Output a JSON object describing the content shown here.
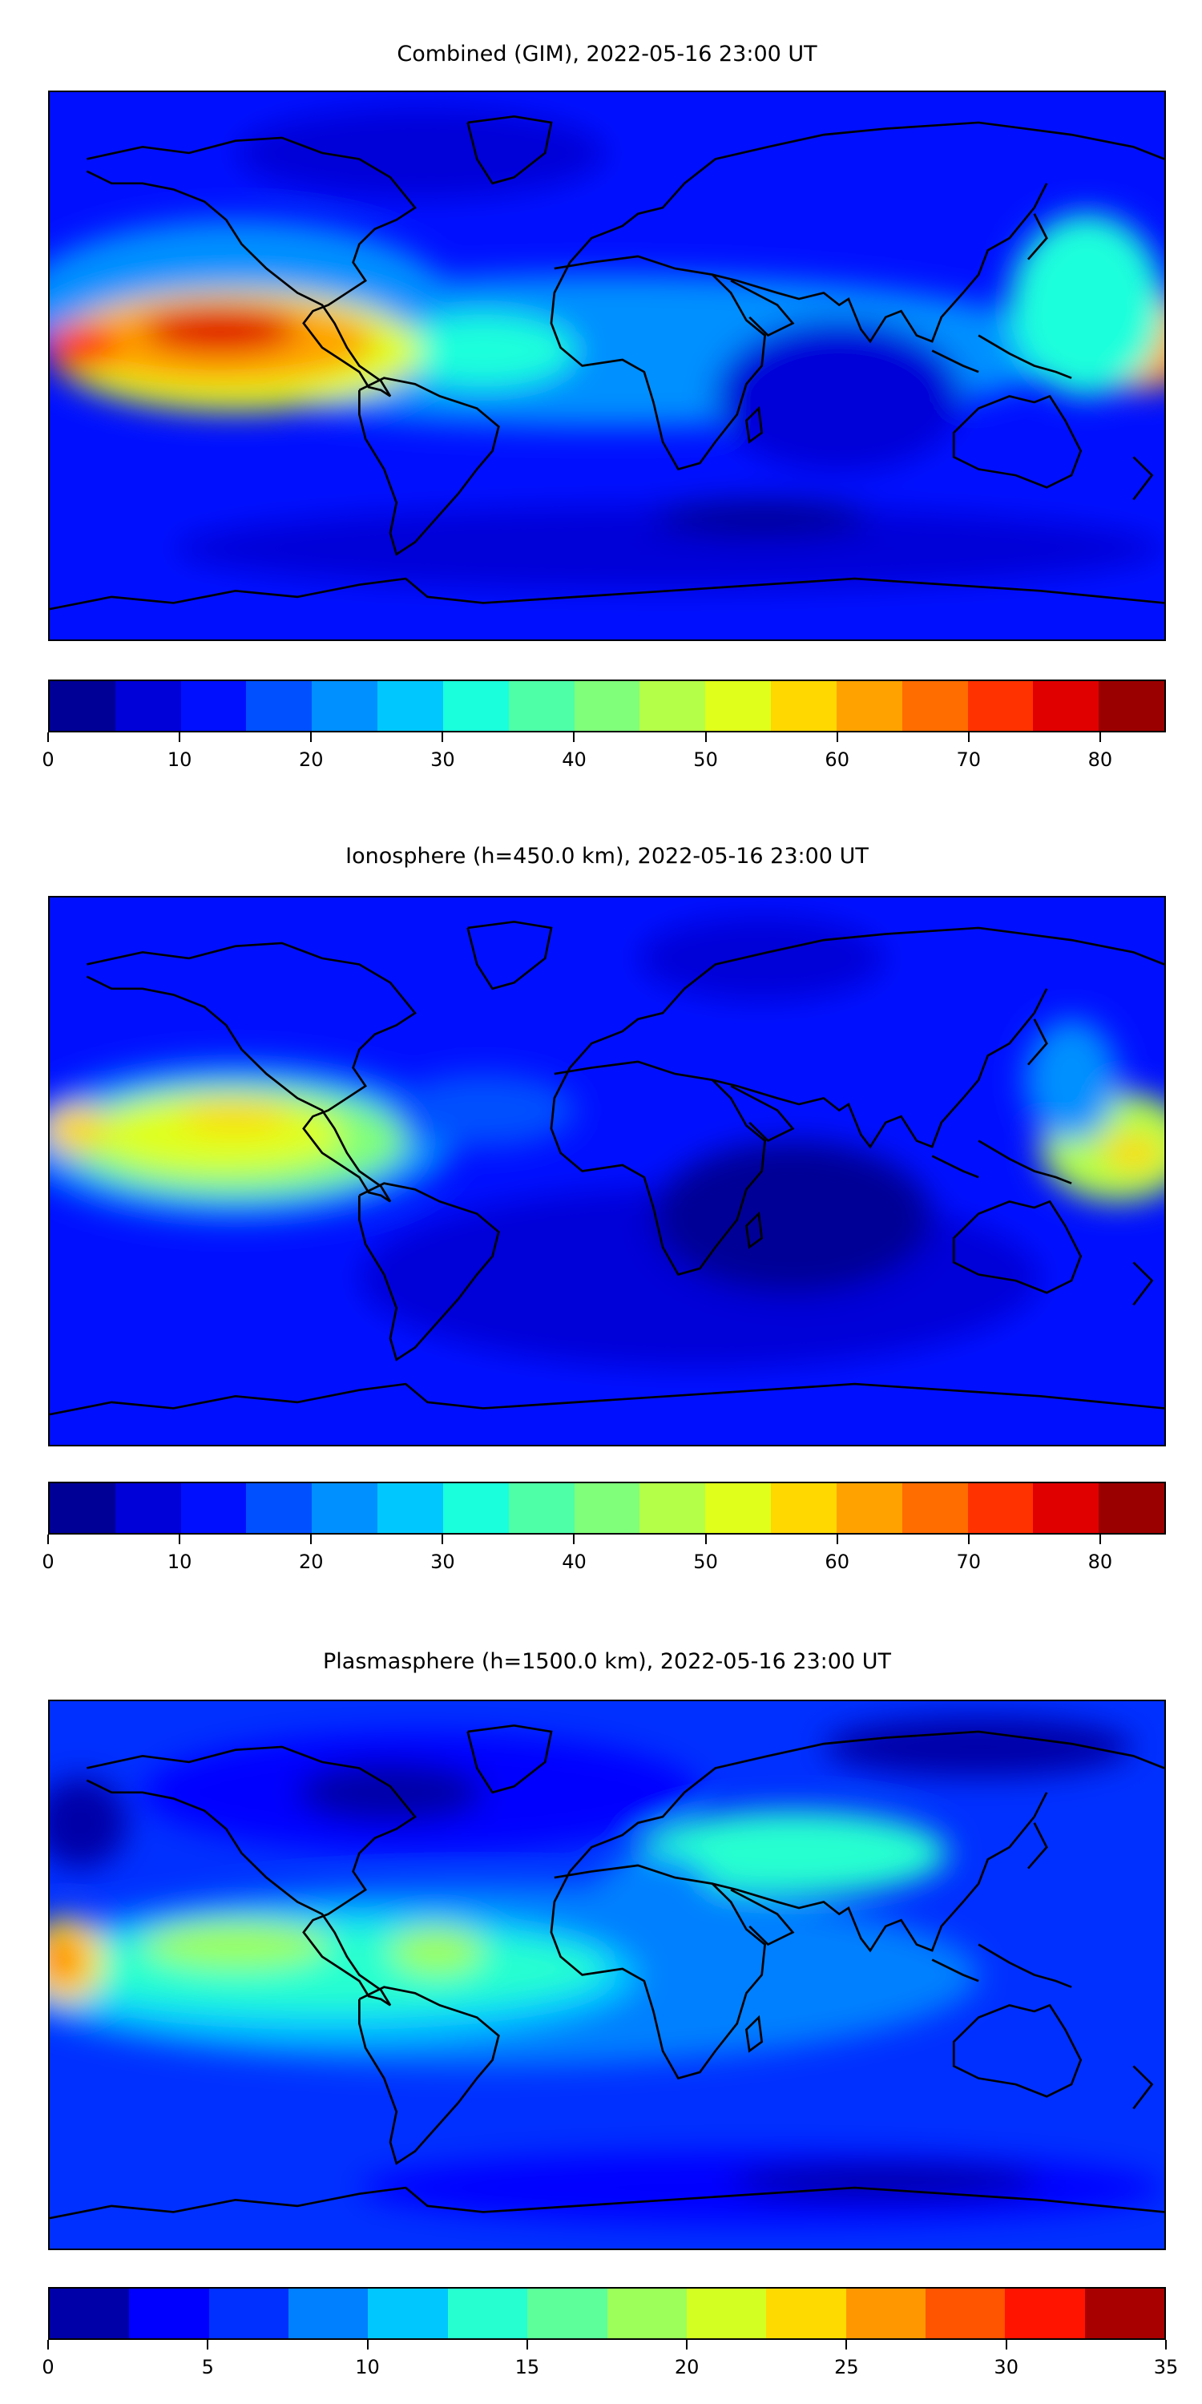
{
  "chart_data": [
    {
      "type": "heatmap",
      "title": "Combined (GIM), 2022-05-16 23:00 UT",
      "projection": "equirectangular world map with coastlines",
      "colorbar": {
        "range": [
          0,
          85
        ],
        "step": 5,
        "ticks": [
          "0",
          "10",
          "20",
          "30",
          "40",
          "50",
          "60",
          "70",
          "80"
        ],
        "tick_values": [
          0,
          10,
          20,
          30,
          40,
          50,
          60,
          70,
          80
        ],
        "colors": [
          "#000096",
          "#0000d8",
          "#0010ff",
          "#0050ff",
          "#0090ff",
          "#00c8ff",
          "#1affdc",
          "#4effa8",
          "#80ff7a",
          "#b4ff48",
          "#e0ff1a",
          "#ffd800",
          "#ffa200",
          "#ff6c00",
          "#ff3200",
          "#e00000",
          "#9b0000"
        ]
      },
      "features": [
        {
          "lon": -125,
          "lat": 5,
          "value": 75
        },
        {
          "lon": -170,
          "lat": 3,
          "value": 70
        },
        {
          "lon": 175,
          "lat": 5,
          "value": 65
        },
        {
          "lon": 70,
          "lat": -5,
          "value": 5
        }
      ]
    },
    {
      "type": "heatmap",
      "title": "Ionosphere  (h=450.0 km), 2022-05-16 23:00 UT",
      "projection": "equirectangular world map with coastlines",
      "colorbar": {
        "range": [
          0,
          85
        ],
        "step": 5,
        "ticks": [
          "0",
          "10",
          "20",
          "30",
          "40",
          "50",
          "60",
          "70",
          "80"
        ],
        "tick_values": [
          0,
          10,
          20,
          30,
          40,
          50,
          60,
          70,
          80
        ],
        "colors": [
          "#000096",
          "#0000d8",
          "#0010ff",
          "#0050ff",
          "#0090ff",
          "#00c8ff",
          "#1affdc",
          "#4effa8",
          "#80ff7a",
          "#b4ff48",
          "#e0ff1a",
          "#ffd800",
          "#ffa200",
          "#ff6c00",
          "#ff3200",
          "#e00000",
          "#9b0000"
        ]
      },
      "features": [
        {
          "lon": -125,
          "lat": 8,
          "value": 55
        },
        {
          "lon": -172,
          "lat": 10,
          "value": 55
        },
        {
          "lon": 170,
          "lat": 3,
          "value": 55
        },
        {
          "lon": 60,
          "lat": -20,
          "value": 0
        }
      ]
    },
    {
      "type": "heatmap",
      "title": "Plasmasphere (h=1500.0 km), 2022-05-16 23:00 UT",
      "projection": "equirectangular world map with coastlines",
      "colorbar": {
        "range": [
          0,
          35
        ],
        "step": 2.5,
        "ticks": [
          "0",
          "5",
          "10",
          "15",
          "20",
          "25",
          "30",
          "35"
        ],
        "tick_values": [
          0,
          5,
          10,
          15,
          20,
          25,
          30,
          35
        ],
        "colors": [
          "#0000a8",
          "#0000ff",
          "#0030ff",
          "#0080ff",
          "#00c8ff",
          "#26ffd0",
          "#5cff9a",
          "#9cff5a",
          "#d4ff22",
          "#ffda00",
          "#ff9800",
          "#ff5400",
          "#ff1400",
          "#a80000"
        ]
      },
      "features": [
        {
          "lon": -175,
          "lat": 0,
          "value": 25
        },
        {
          "lon": -125,
          "lat": 5,
          "value": 20
        },
        {
          "lon": -55,
          "lat": 0,
          "value": 20
        },
        {
          "lon": 60,
          "lat": 30,
          "value": 15
        },
        {
          "lon": 0,
          "lat": 60,
          "value": 0
        }
      ]
    }
  ]
}
